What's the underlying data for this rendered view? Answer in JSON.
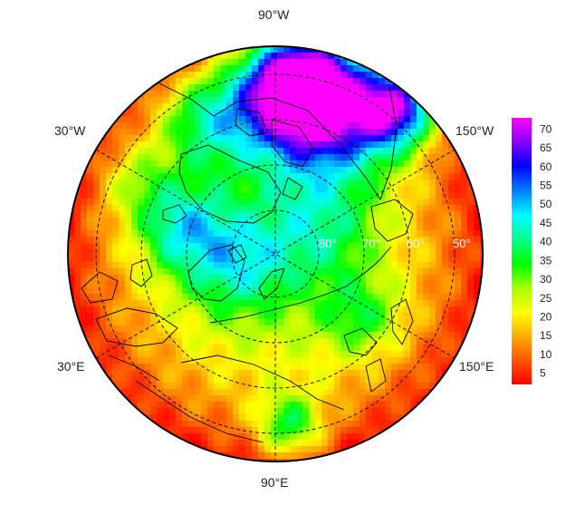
{
  "map": {
    "projection": "polar-stereographic-north",
    "longitude_labels": {
      "top": "90°W",
      "bottom": "90°E",
      "upper_left": "30°W",
      "upper_right": "150°W",
      "lower_left": "30°E",
      "lower_right": "150°E"
    },
    "latitude_labels": [
      "80°",
      "70°",
      "60°",
      "50°"
    ],
    "graticule_style": "dashed"
  },
  "colorbar": {
    "ticks": [
      "70",
      "65",
      "60",
      "55",
      "50",
      "45",
      "40",
      "35",
      "30",
      "25",
      "20",
      "15",
      "10",
      "5"
    ],
    "range": [
      2,
      73
    ],
    "colors": [
      "#ff0000",
      "#ff5500",
      "#ffaa00",
      "#ffff00",
      "#aaff00",
      "#00ff00",
      "#00ff88",
      "#00ffff",
      "#0088ff",
      "#0000ff",
      "#8800ff",
      "#ff00ff"
    ]
  }
}
